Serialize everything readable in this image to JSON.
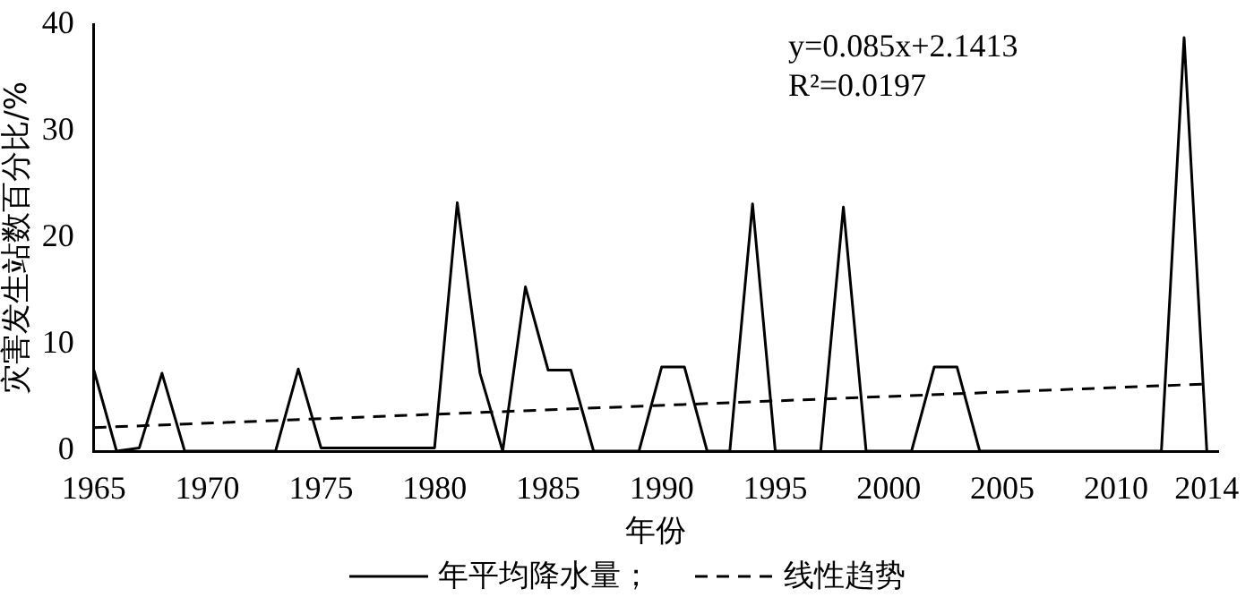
{
  "chart_data": {
    "type": "line",
    "xlabel": "年份",
    "ylabel": "灾害发生站数百分比/%",
    "x": [
      1965,
      1966,
      1967,
      1968,
      1969,
      1970,
      1971,
      1972,
      1973,
      1974,
      1975,
      1976,
      1977,
      1978,
      1979,
      1980,
      1981,
      1982,
      1983,
      1984,
      1985,
      1986,
      1987,
      1988,
      1989,
      1990,
      1991,
      1992,
      1993,
      1994,
      1995,
      1996,
      1997,
      1998,
      1999,
      2000,
      2001,
      2002,
      2003,
      2004,
      2005,
      2006,
      2007,
      2008,
      2009,
      2010,
      2011,
      2012,
      2013,
      2014
    ],
    "series": [
      {
        "name": "年平均降水量；",
        "color": "#000000",
        "line_style": "solid",
        "values": [
          7.6,
          0,
          0.3,
          7.3,
          0,
          0,
          0,
          0,
          0,
          7.7,
          0.3,
          0.3,
          0.3,
          0.3,
          0.3,
          0.3,
          23.3,
          7.3,
          0,
          15.4,
          7.6,
          7.6,
          0,
          0,
          0,
          7.9,
          7.9,
          0,
          0,
          23.2,
          0,
          0,
          0,
          22.9,
          0,
          0,
          0,
          7.9,
          7.9,
          0,
          0,
          0,
          0,
          0,
          0,
          0,
          0,
          0,
          38.8,
          0
        ]
      },
      {
        "name": "线性趋势",
        "color": "#000000",
        "line_style": "dashed",
        "x": [
          1965,
          2014
        ],
        "values": [
          2.2,
          6.3
        ]
      }
    ],
    "xlim": [
      1965,
      2014.5
    ],
    "xticks": [
      1965,
      1970,
      1975,
      1980,
      1985,
      1990,
      1995,
      2000,
      2005,
      2010,
      2014
    ],
    "ylim": [
      0,
      40
    ],
    "yticks": [
      0,
      10,
      20,
      30,
      40
    ],
    "grid": false,
    "legend": "bottom",
    "marker": "none",
    "annotations": [
      "y=0.085x+2.1413",
      "R²=0.0197"
    ]
  }
}
